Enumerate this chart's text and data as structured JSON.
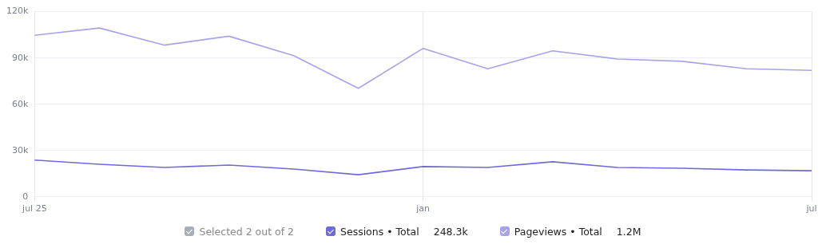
{
  "chart_data": {
    "type": "line",
    "categories": [
      "jul 25",
      null,
      null,
      null,
      null,
      null,
      "jan",
      null,
      null,
      null,
      null,
      null,
      "jul"
    ],
    "series": [
      {
        "name": "Sessions • Total",
        "color": "#6f69d9",
        "values": [
          23800,
          21100,
          19000,
          20600,
          18000,
          14300,
          19600,
          19000,
          22700,
          19000,
          18500,
          17400,
          16900
        ]
      },
      {
        "name": "Pageviews • Total",
        "color": "#a8a3e6",
        "values": [
          104700,
          109400,
          98300,
          104100,
          91500,
          70300,
          96200,
          83000,
          94600,
          89300,
          87800,
          83000,
          81900
        ]
      }
    ],
    "ylim": [
      0,
      120000
    ],
    "yticks": [
      {
        "value": 0,
        "label": "0"
      },
      {
        "value": 30000,
        "label": "30k"
      },
      {
        "value": 60000,
        "label": "60k"
      },
      {
        "value": 90000,
        "label": "90k"
      },
      {
        "value": 120000,
        "label": "120k"
      }
    ],
    "grid": true,
    "legend": "bottom",
    "marker": "none",
    "line_style": "solid",
    "annotations": [
      "Selected 2 out of 2",
      "248.3k",
      "1.2M"
    ]
  }
}
